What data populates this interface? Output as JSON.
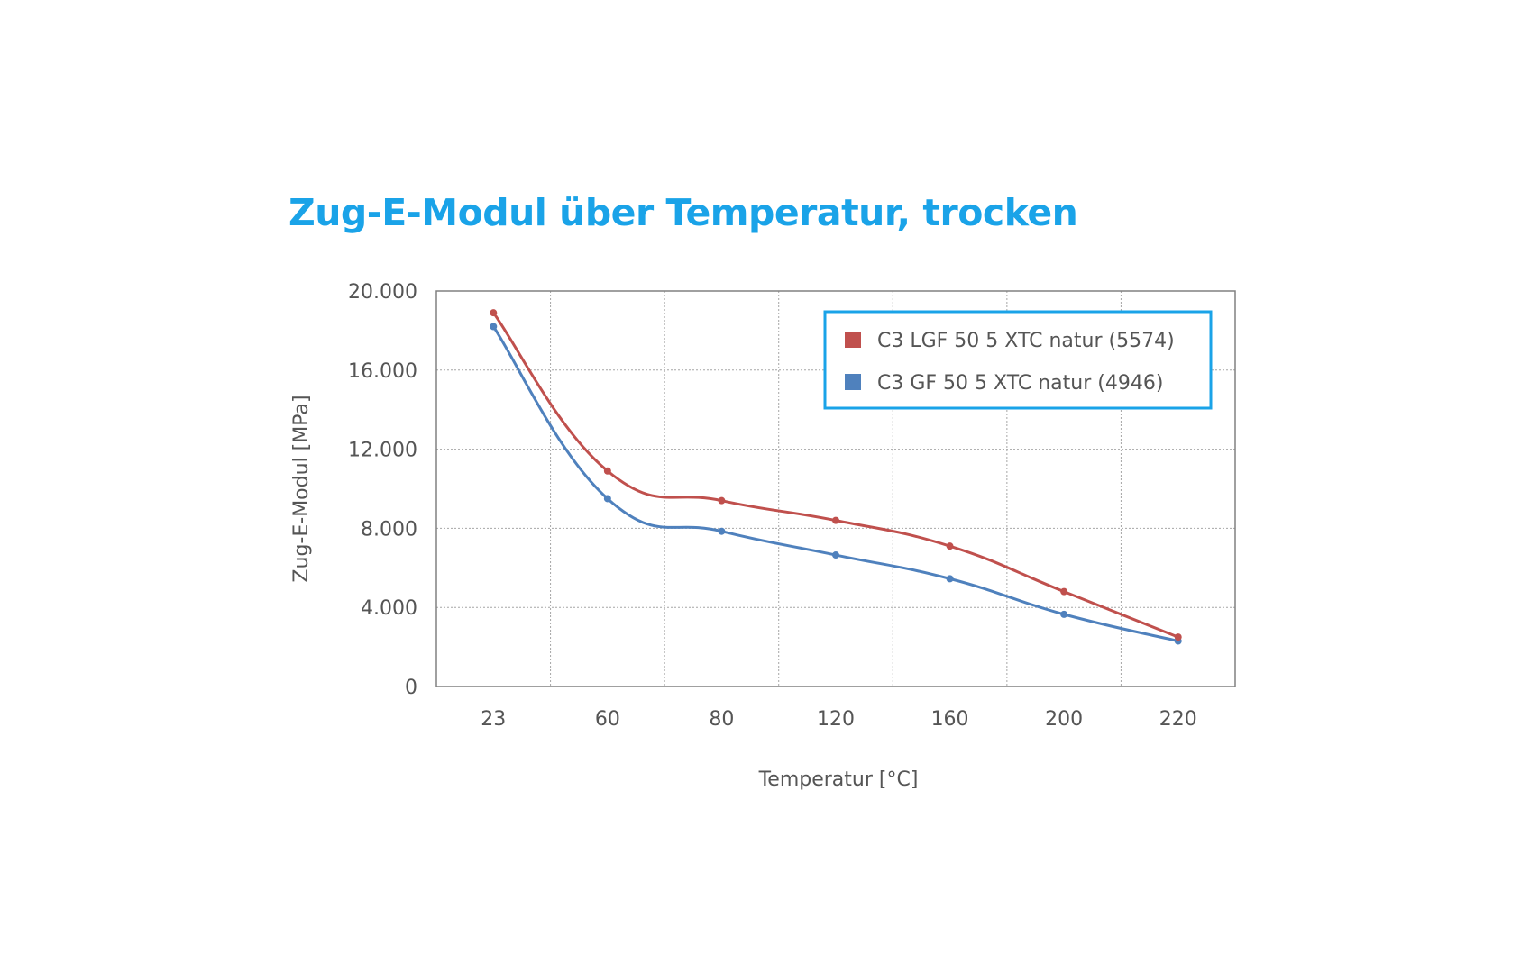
{
  "chart_data": {
    "type": "line",
    "title": "Zug-E-Modul über Temperatur, trocken",
    "xlabel": "Temperatur [°C]",
    "ylabel": "Zug-E-Modul [MPa]",
    "categories": [
      "23",
      "60",
      "80",
      "120",
      "160",
      "200",
      "220"
    ],
    "y_ticks": [
      "0",
      "4.000",
      "8.000",
      "12.000",
      "16.000",
      "20.000"
    ],
    "ylim": [
      0,
      20000
    ],
    "grid": true,
    "legend_position": "top-right",
    "series": [
      {
        "name": "C3 LGF 50 5 XTC natur (5574)",
        "color": "#c0504d",
        "values": [
          18900,
          10900,
          9400,
          8400,
          7100,
          4800,
          2500
        ]
      },
      {
        "name": "C3 GF 50 5 XTC natur (4946)",
        "color": "#4f81bd",
        "values": [
          18200,
          9500,
          7850,
          6650,
          5450,
          3650,
          2300
        ]
      }
    ],
    "title_color": "#1aa3e8",
    "legend_border_color": "#1aa3e8"
  }
}
